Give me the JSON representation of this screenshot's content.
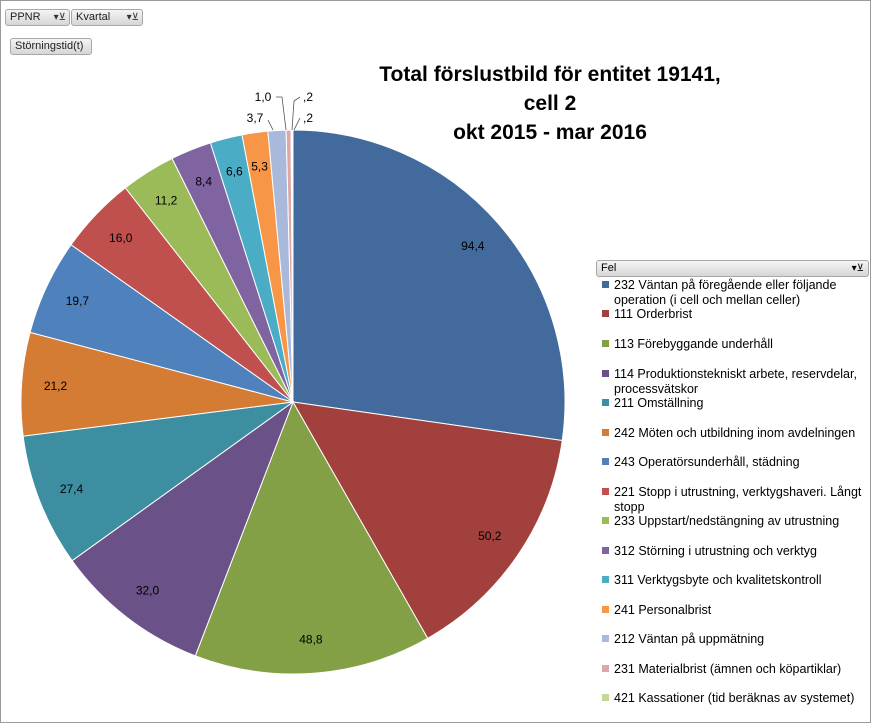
{
  "filters": {
    "ppnr": "PPNR",
    "kvartal": "Kvartal",
    "storningstid": "Störningstid(t)",
    "filter_icon": "filter-icon"
  },
  "chart_data": {
    "type": "pie",
    "title_line1": "Total förslustbild för entitet 19141, cell 2",
    "title_line2": "okt 2015 - mar 2016",
    "legend_title": "Fel",
    "legend_position": "right",
    "slices": [
      {
        "label": "232 Väntan på föregående eller följande operation (i cell och mellan celler)",
        "value": 94.4,
        "display": "94,4",
        "color": "#436a9c"
      },
      {
        "label": "111 Orderbrist",
        "value": 50.2,
        "display": "50,2",
        "color": "#a1403d"
      },
      {
        "label": "113 Förebyggande underhåll",
        "value": 48.8,
        "display": "48,8",
        "color": "#83a047"
      },
      {
        "label": "114 Produktionstekniskt arbete, reservdelar, processvätskor",
        "value": 32.0,
        "display": "32,0",
        "color": "#6a5188"
      },
      {
        "label": "211 Omställning",
        "value": 27.4,
        "display": "27,4",
        "color": "#3c8ea0"
      },
      {
        "label": "242 Möten och utbildning inom avdelningen",
        "value": 21.2,
        "display": "21,2",
        "color": "#d57c34"
      },
      {
        "label": "243 Operatörsunderhåll, städning",
        "value": 19.7,
        "display": "19,7",
        "color": "#4f81bd"
      },
      {
        "label": "221 Stopp i utrustning, verktygshaveri. Långt stopp",
        "value": 16.0,
        "display": "16,0",
        "color": "#c0504d"
      },
      {
        "label": "233 Uppstart/nedstängning av utrustning",
        "value": 11.2,
        "display": "11,2",
        "color": "#9bbb59"
      },
      {
        "label": "312 Störning i utrustning och verktyg",
        "value": 8.4,
        "display": "8,4",
        "color": "#8064a2"
      },
      {
        "label": "311 Verktygsbyte och kvalitetskontroll",
        "value": 6.6,
        "display": "6,6",
        "color": "#4bacc6"
      },
      {
        "label": "241 Personalbrist",
        "value": 5.3,
        "display": "5,3",
        "color": "#f79646"
      },
      {
        "label": "212 Väntan på uppmätning",
        "value": 3.7,
        "display": "3,7",
        "color": "#a9b9dc"
      },
      {
        "label": "231 Materialbrist (ämnen och köpartiklar)",
        "value": 1.0,
        "display": "1,0",
        "color": "#dca7a6"
      },
      {
        "label": "421 Kassationer (tid beräknas av systemet)",
        "value": 0.2,
        "display": ",2",
        "color": "#c4d79b"
      },
      {
        "label": "",
        "value": 0.2,
        "display": ",2",
        "color": "#b2a2c7"
      }
    ]
  }
}
